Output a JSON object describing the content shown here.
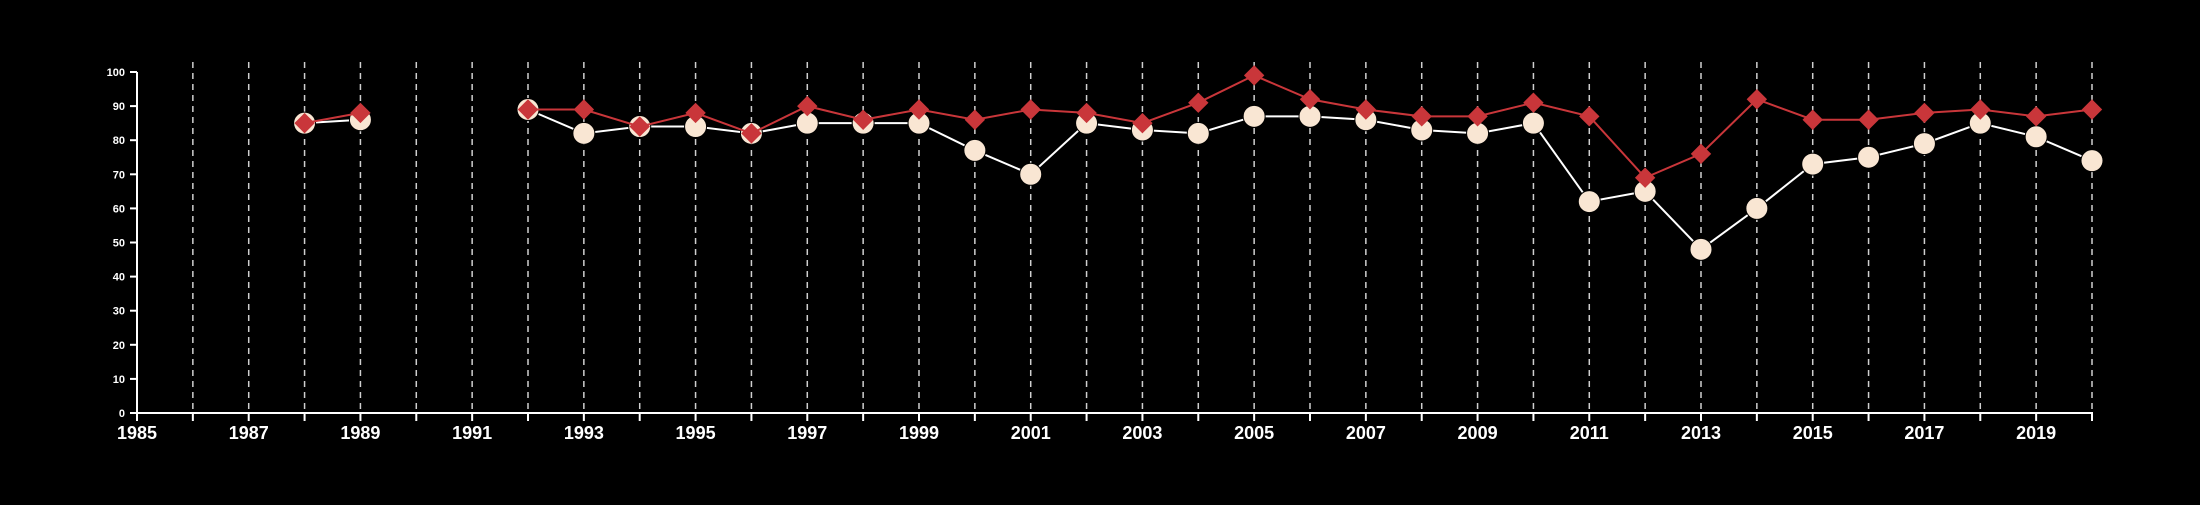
{
  "chart_data": {
    "type": "line",
    "title": "",
    "xlabel": "",
    "ylabel": "",
    "xlim": [
      1985,
      2020
    ],
    "ylim": [
      0,
      100
    ],
    "x_ticks": [
      1985,
      1986,
      1987,
      1988,
      1989,
      1990,
      1991,
      1992,
      1993,
      1994,
      1995,
      1996,
      1997,
      1998,
      1999,
      2000,
      2001,
      2002,
      2003,
      2004,
      2005,
      2006,
      2007,
      2008,
      2009,
      2010,
      2011,
      2012,
      2013,
      2014,
      2015,
      2016,
      2017,
      2018,
      2019,
      2020
    ],
    "x_tick_labels": [
      "1985",
      "1987",
      "1989",
      "1991",
      "1993",
      "1995",
      "1997",
      "1999",
      "2001",
      "2003",
      "2005",
      "2007",
      "2009",
      "2011",
      "2013",
      "2015",
      "2017",
      "2019"
    ],
    "y_ticks": [
      0,
      10,
      20,
      30,
      40,
      50,
      60,
      70,
      80,
      90,
      100
    ],
    "y_tick_labels": [
      "0",
      "10",
      "20",
      "30",
      "40",
      "50",
      "60",
      "70",
      "80",
      "90",
      "100"
    ],
    "grid": "vertical dashed lines at every year",
    "legend": "none",
    "x": [
      1988,
      1989,
      1992,
      1993,
      1994,
      1995,
      1996,
      1997,
      1998,
      1999,
      2000,
      2001,
      2002,
      2003,
      2004,
      2005,
      2006,
      2007,
      2008,
      2009,
      2010,
      2011,
      2012,
      2013,
      2014,
      2015,
      2016,
      2017,
      2018,
      2019,
      2020
    ],
    "series": [
      {
        "marker": "circle",
        "color": "#ffffff",
        "fill": "#f9e6d3",
        "values": [
          85,
          86,
          89,
          82,
          84,
          84,
          82,
          85,
          85,
          85,
          77,
          70,
          85,
          83,
          82,
          87,
          87,
          86,
          83,
          82,
          85,
          62,
          65,
          48,
          60,
          73,
          75,
          79,
          85,
          81,
          74
        ]
      },
      {
        "marker": "diamond",
        "color": "#c9363a",
        "fill": "#c9363a",
        "values": [
          85,
          88,
          89,
          89,
          84,
          88,
          82,
          90,
          86,
          89,
          86,
          89,
          88,
          85,
          91,
          99,
          92,
          89,
          87,
          87,
          91,
          87,
          69,
          76,
          92,
          86,
          86,
          88,
          89,
          87,
          89
        ]
      }
    ],
    "gaps_after_x": [
      1989
    ]
  },
  "colors": {
    "background": "#000000",
    "axis": "#ffffff",
    "grid": "#cfcfcf"
  }
}
